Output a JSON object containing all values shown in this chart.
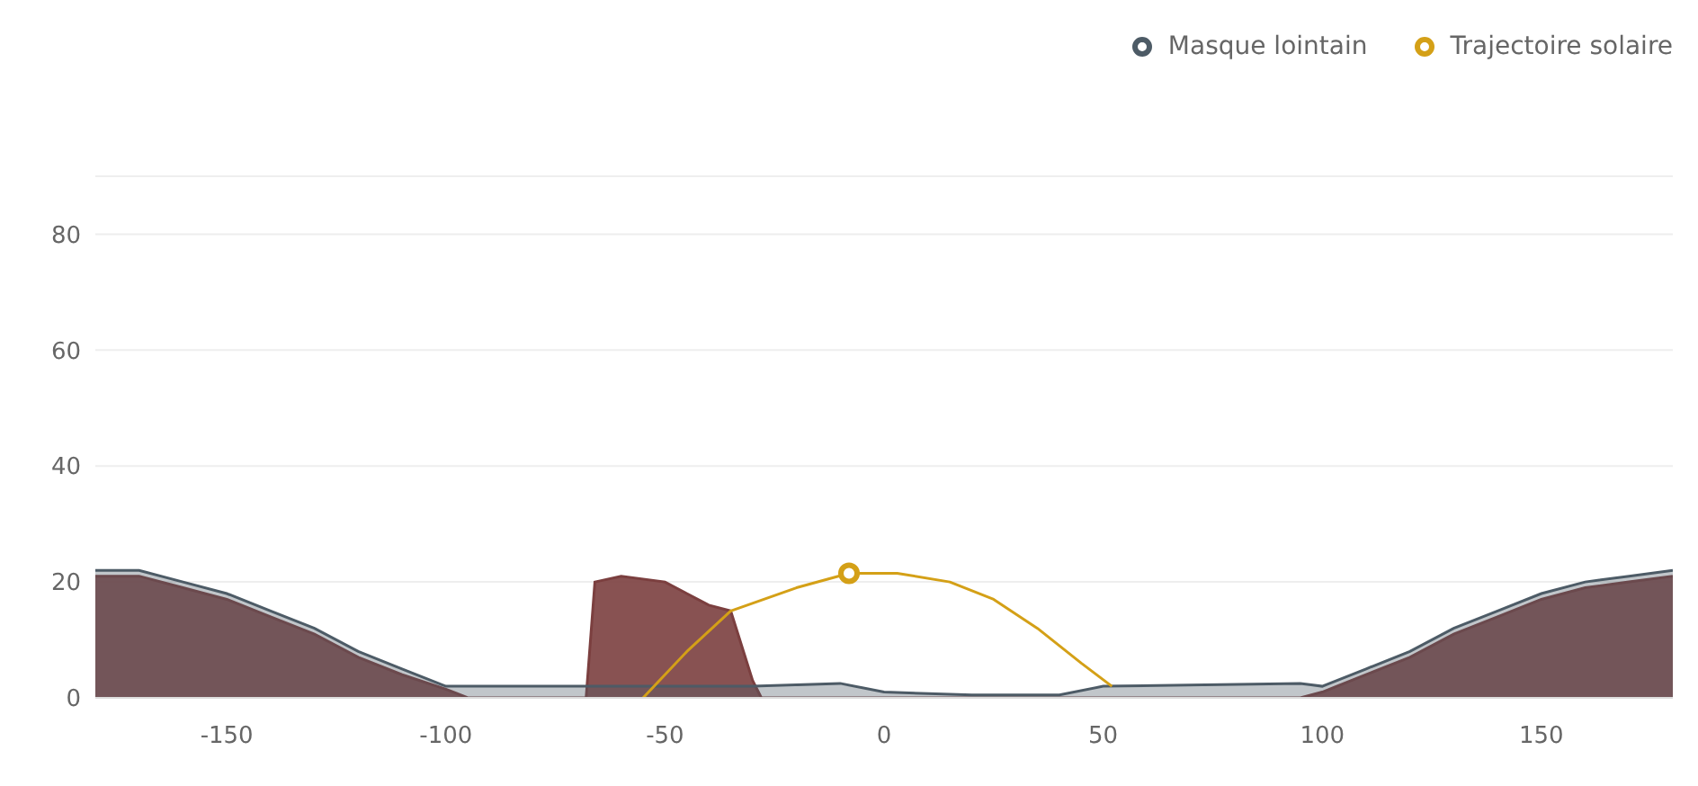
{
  "chart_data": {
    "type": "area",
    "xlim": [
      -180,
      180
    ],
    "xticks": [
      -150,
      -100,
      -50,
      0,
      50,
      100,
      150
    ],
    "ylim": [
      0,
      90
    ],
    "yticks": [
      0,
      20,
      40,
      60,
      80
    ],
    "grid": "y",
    "legend": "top right",
    "series": [
      {
        "color": "#7b3f3f",
        "x": [
          -180,
          -170,
          -160,
          -150,
          -140,
          -130,
          -120,
          -110,
          -100,
          -95,
          -68,
          -66,
          -60,
          -50,
          -40,
          -35,
          -30,
          -28,
          95,
          100,
          110,
          120,
          130,
          140,
          150,
          160,
          170,
          180
        ],
        "values": [
          21,
          21,
          19,
          17,
          14,
          11,
          7,
          4,
          1.5,
          0,
          0,
          20,
          21,
          20,
          16,
          15,
          3,
          0,
          0,
          1,
          4,
          7,
          11,
          14,
          17,
          19,
          20,
          21
        ]
      },
      {
        "type": "area",
        "name": "Masque lointain",
        "color": "#4d5b66",
        "x": [
          -180,
          -170,
          -160,
          -150,
          -140,
          -130,
          -120,
          -110,
          -100,
          -92,
          -60,
          -30,
          -10,
          0,
          20,
          40,
          50,
          95,
          100,
          110,
          120,
          130,
          140,
          150,
          160,
          170,
          180
        ],
        "values": [
          22,
          22,
          20,
          18,
          15,
          12,
          8,
          5,
          2,
          2,
          2,
          2,
          2.5,
          1,
          0.5,
          0.5,
          2,
          2.5,
          2,
          5,
          8,
          12,
          15,
          18,
          20,
          21,
          22
        ]
      },
      {
        "type": "line",
        "name": "Trajectoire solaire",
        "color": "#d4a017",
        "marker": "none",
        "x": [
          -55,
          -45,
          -35,
          -20,
          -8,
          3,
          15,
          25,
          35,
          45,
          52
        ],
        "values": [
          0,
          8,
          15,
          19,
          21.5,
          21.5,
          20,
          17,
          12,
          6,
          2
        ]
      },
      {
        "type": "scatter",
        "color": "#d4a017",
        "marker": "circle",
        "x": [
          -8
        ],
        "values": [
          21.5
        ]
      }
    ]
  }
}
